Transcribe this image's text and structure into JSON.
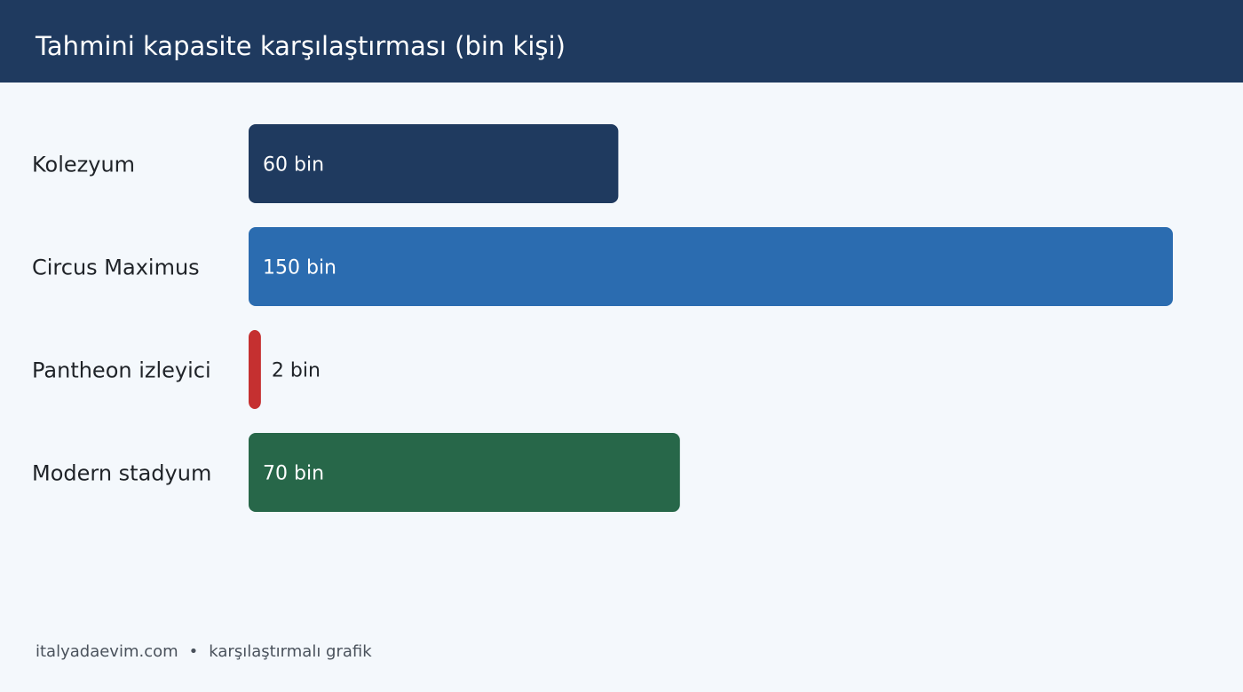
{
  "header": {
    "title": "Tahmini kapasite karşılaştırması (bin kişi)"
  },
  "chart_data": {
    "type": "bar",
    "orientation": "horizontal",
    "title": "Tahmini kapasite karşılaştırması (bin kişi)",
    "xlabel": "",
    "ylabel": "",
    "xlim": [
      0,
      150
    ],
    "grid": false,
    "categories": [
      "Kolezyum",
      "Circus Maximus",
      "Pantheon izleyici",
      "Modern stadyum"
    ],
    "values": [
      60,
      150,
      2,
      70
    ],
    "value_labels": [
      "60 bin",
      "150 bin",
      "2 bin",
      "70 bin"
    ],
    "colors": [
      "#1f3a5f",
      "#2b6cb0",
      "#c53030",
      "#276749"
    ]
  },
  "footer": {
    "site": "italyadaevim.com",
    "separator": "•",
    "caption": "karşılaştırmalı grafik"
  }
}
